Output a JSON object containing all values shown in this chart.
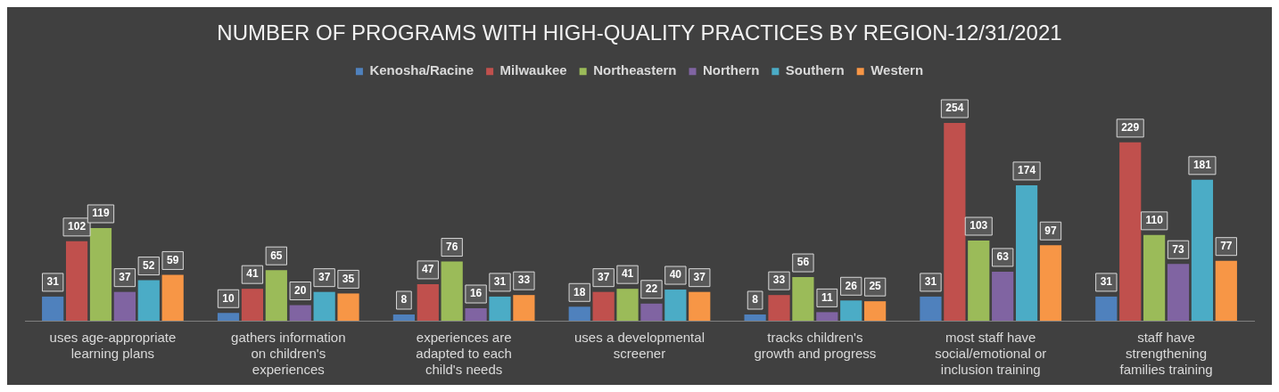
{
  "chart_data": {
    "type": "bar",
    "title": "NUMBER OF PROGRAMS WITH HIGH-QUALITY PRACTICES BY REGION-12/31/2021",
    "categories": [
      "uses age-appropriate learning plans",
      "gathers information on children's experiences",
      "experiences are adapted to each child's needs",
      "uses a developmental screener",
      "tracks children's growth and progress",
      "most staff have social/emotional or inclusion training",
      "staff have strengthening families training"
    ],
    "series": [
      {
        "name": "Kenosha/Racine",
        "color": "#4f81bd",
        "values": [
          31,
          10,
          8,
          18,
          8,
          31,
          31
        ]
      },
      {
        "name": "Milwaukee",
        "color": "#c0504d",
        "values": [
          102,
          41,
          47,
          37,
          33,
          254,
          229
        ]
      },
      {
        "name": "Northeastern",
        "color": "#9bbb59",
        "values": [
          119,
          65,
          76,
          41,
          56,
          103,
          110
        ]
      },
      {
        "name": "Northern",
        "color": "#8064a2",
        "values": [
          37,
          20,
          16,
          22,
          11,
          63,
          73
        ]
      },
      {
        "name": "Southern",
        "color": "#4bacc6",
        "values": [
          52,
          37,
          31,
          40,
          26,
          174,
          181
        ]
      },
      {
        "name": "Western",
        "color": "#f79646",
        "values": [
          59,
          35,
          33,
          37,
          25,
          97,
          77
        ]
      }
    ],
    "data_labels": true,
    "legend": "top",
    "grid": false
  }
}
